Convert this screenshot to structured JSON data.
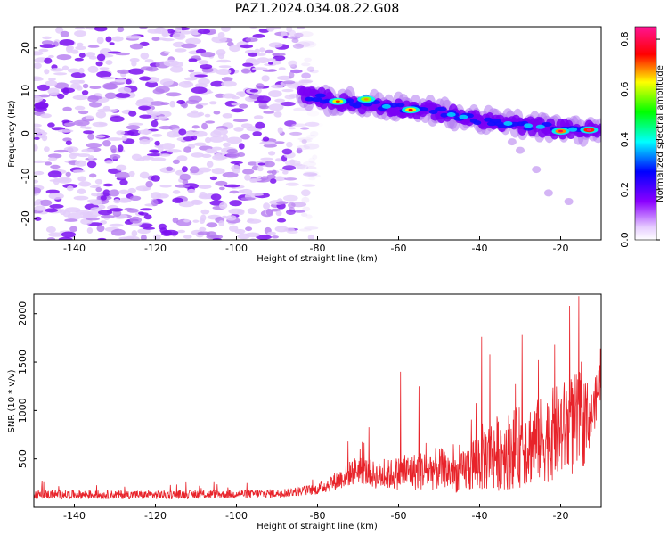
{
  "title": "PAZ1.2024.034.08.22.G08",
  "chart_data": [
    {
      "type": "heatmap",
      "xlabel": "Height of straight line (km)",
      "ylabel": "Frequency (Hz)",
      "xlim": [
        -150,
        -10
      ],
      "ylim": [
        -25,
        25
      ],
      "x_ticks": [
        "-140",
        "-120",
        "-100",
        "-80",
        "-60",
        "-40",
        "-20"
      ],
      "y_ticks": [
        "-20",
        "-10",
        "0",
        "10",
        "20"
      ],
      "colorbar": {
        "label": "Normalized spectral amplitude",
        "range": [
          0,
          0.85
        ],
        "ticks": [
          "0.0",
          "0.2",
          "0.4",
          "0.6",
          "0.8"
        ],
        "colormap": "gist_rainbow_r"
      },
      "features": {
        "noise_region_x": [
          -150,
          -80
        ],
        "signal_ridge": [
          {
            "x": -84,
            "y": 9
          },
          {
            "x": -80,
            "y": 8.5
          },
          {
            "x": -75,
            "y": 7.5
          },
          {
            "x": -70,
            "y": 7
          },
          {
            "x": -65,
            "y": 6.5
          },
          {
            "x": -60,
            "y": 6
          },
          {
            "x": -55,
            "y": 5.5
          },
          {
            "x": -50,
            "y": 5
          },
          {
            "x": -45,
            "y": 4
          },
          {
            "x": -40,
            "y": 3
          },
          {
            "x": -35,
            "y": 2.5
          },
          {
            "x": -30,
            "y": 2
          },
          {
            "x": -25,
            "y": 1.5
          },
          {
            "x": -20,
            "y": 1
          },
          {
            "x": -15,
            "y": 0.8
          },
          {
            "x": -10,
            "y": 0.5
          }
        ],
        "peak_points": [
          {
            "x": -75,
            "y": 7.5,
            "amp": 0.72
          },
          {
            "x": -68,
            "y": 8,
            "amp": 0.68
          },
          {
            "x": -57,
            "y": 5.5,
            "amp": 0.75
          },
          {
            "x": -20,
            "y": 0.5,
            "amp": 0.8
          },
          {
            "x": -13,
            "y": 0.8,
            "amp": 0.85
          }
        ]
      },
      "grid": false
    },
    {
      "type": "line",
      "xlabel": "Height of straight line (km)",
      "ylabel": "SNR (10 * v/v)",
      "xlim": [
        -150,
        -10
      ],
      "ylim": [
        0,
        2200
      ],
      "x_ticks": [
        "-140",
        "-120",
        "-100",
        "-80",
        "-60",
        "-40",
        "-20"
      ],
      "y_ticks": [
        "500",
        "1000",
        "1500",
        "2000"
      ],
      "series": [
        {
          "color": "#e8232a",
          "envelope": [
            {
              "x": -150,
              "base": 120,
              "amp": 90
            },
            {
              "x": -120,
              "base": 115,
              "amp": 90
            },
            {
              "x": -90,
              "base": 130,
              "amp": 90
            },
            {
              "x": -80,
              "base": 170,
              "amp": 110
            },
            {
              "x": -75,
              "base": 250,
              "amp": 200
            },
            {
              "x": -70,
              "base": 350,
              "amp": 300
            },
            {
              "x": -65,
              "base": 280,
              "amp": 280
            },
            {
              "x": -60,
              "base": 300,
              "amp": 350
            },
            {
              "x": -50,
              "base": 330,
              "amp": 450
            },
            {
              "x": -45,
              "base": 280,
              "amp": 380
            },
            {
              "x": -40,
              "base": 400,
              "amp": 700
            },
            {
              "x": -35,
              "base": 450,
              "amp": 800
            },
            {
              "x": -30,
              "base": 500,
              "amp": 850
            },
            {
              "x": -25,
              "base": 550,
              "amp": 900
            },
            {
              "x": -20,
              "base": 650,
              "amp": 1000
            },
            {
              "x": -15,
              "base": 700,
              "amp": 1100
            },
            {
              "x": -12,
              "base": 900,
              "amp": 500
            },
            {
              "x": -10,
              "base": 1300,
              "amp": 500
            }
          ],
          "peaks": [
            {
              "x": -72.5,
              "y": 680
            },
            {
              "x": -59.5,
              "y": 1400
            },
            {
              "x": -55,
              "y": 1250
            },
            {
              "x": -39.5,
              "y": 1760
            },
            {
              "x": -37.5,
              "y": 1580
            },
            {
              "x": -29.5,
              "y": 1780
            },
            {
              "x": -25.5,
              "y": 1520
            },
            {
              "x": -21.5,
              "y": 1680
            },
            {
              "x": -15.5,
              "y": 2180
            },
            {
              "x": -11.5,
              "y": 1260
            },
            {
              "x": -10.2,
              "y": 1640
            }
          ]
        }
      ],
      "grid": false
    }
  ]
}
